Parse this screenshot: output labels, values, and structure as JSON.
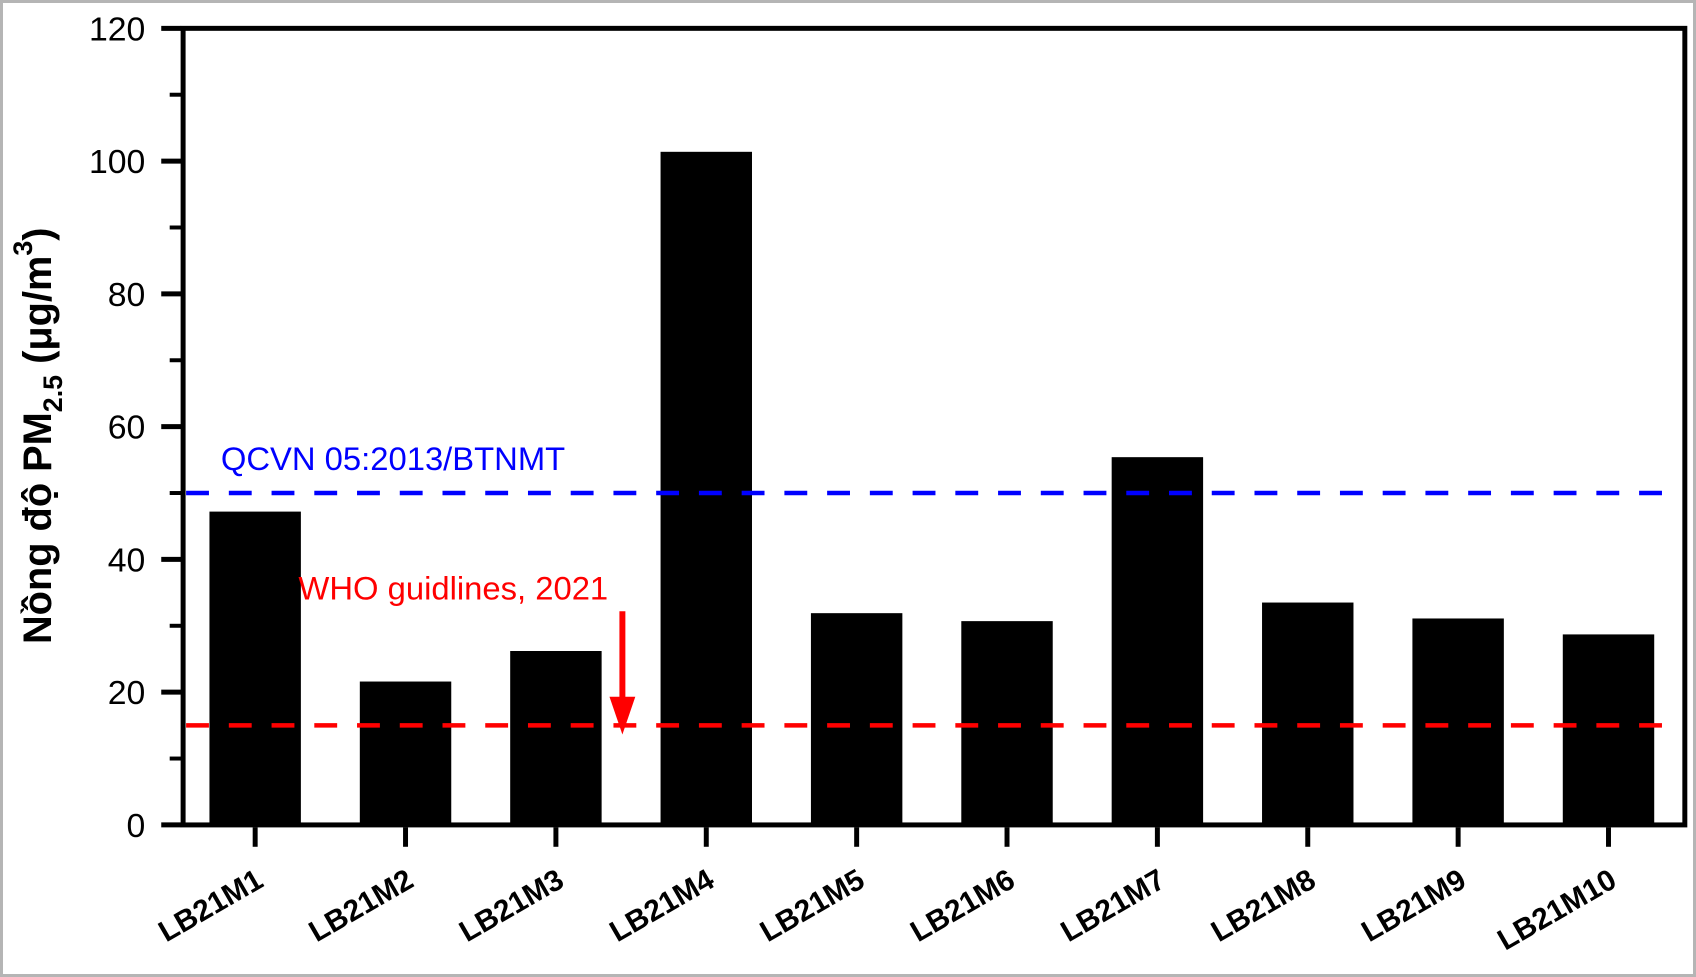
{
  "page": {
    "background_color": "#ffffff",
    "frame_color": "#000000"
  },
  "chart_data": {
    "type": "bar",
    "title": "",
    "categories": [
      "LB21M1",
      "LB21M2",
      "LB21M3",
      "LB21M4",
      "LB21M5",
      "LB21M6",
      "LB21M7",
      "LB21M8",
      "LB21M9",
      "LB21M10"
    ],
    "values": [
      47.2,
      21.6,
      26.2,
      101.4,
      31.9,
      30.7,
      55.4,
      33.5,
      31.1,
      28.7
    ],
    "bar_color": "#000000",
    "xlabel": "",
    "ylabel": "Nồng độ PM2.5 (μg/m³)",
    "ylabel_parts": {
      "prefix": "Nồng độ PM",
      "subscript": "2.5",
      "mid": " (μg/m",
      "superscript": "3",
      "suffix": ")"
    },
    "ylim": [
      0,
      120
    ],
    "ytick_step": 20,
    "ytick_labels": [
      "0",
      "20",
      "40",
      "60",
      "80",
      "100",
      "120"
    ],
    "minor_ytick_values": [
      10,
      30,
      50,
      70,
      90,
      110
    ],
    "grid": false,
    "legend": "none",
    "reference_lines": [
      {
        "label": "QCVN 05:2013/BTNMT",
        "value": 50,
        "color": "#0000ff",
        "style": "dashed"
      },
      {
        "label": "WHO guidlines, 2021",
        "value": 15,
        "color": "#ff0000",
        "style": "dashed",
        "arrow": "down-arrow-to-line"
      }
    ]
  }
}
